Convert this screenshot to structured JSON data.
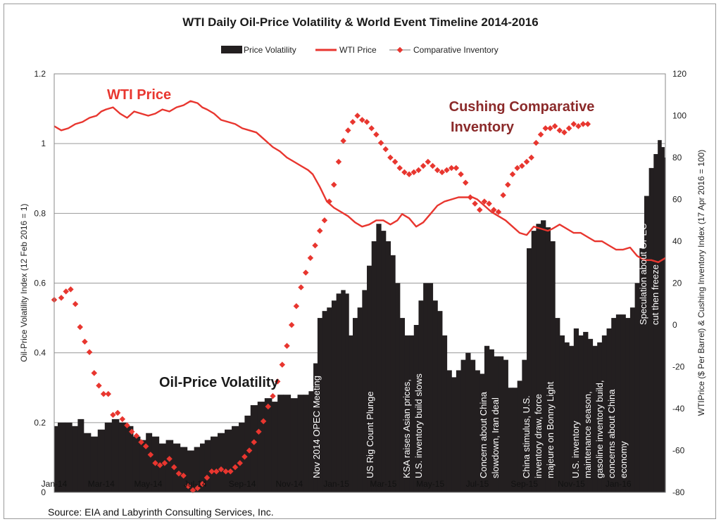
{
  "chart_data": {
    "type": "bar+line+scatter",
    "title": "WTI Daily Oil-Price Volatility & World Event Timeline 2014-2016",
    "legend": {
      "placement": "top",
      "entries": [
        {
          "label": "Price Volatility",
          "color": "#231f20",
          "kind": "bar"
        },
        {
          "label": "WTI Price",
          "color": "#e8362f",
          "kind": "line"
        },
        {
          "label": "Comparative Inventory",
          "color": "#e8362f",
          "kind": "marker-line"
        }
      ]
    },
    "y_left": {
      "label": "Oil-Price Volatility Index (12 Feb 2016 = 1)",
      "range": [
        0,
        1.2
      ],
      "ticks": [
        "0",
        "0.2",
        "0.4",
        "0.6",
        "0.8",
        "1",
        "1.2"
      ]
    },
    "y_right": {
      "label": "WTIPrice ($ Per Barrel) & Cushing Inventory Index (17 Apr 2016 = 100)",
      "range": [
        -80,
        120
      ],
      "ticks": [
        "-80",
        "-60",
        "-40",
        "-20",
        "0",
        "20",
        "40",
        "60",
        "80",
        "100",
        "120"
      ]
    },
    "x_axis": {
      "range": [
        0,
        26
      ],
      "ticks": [
        {
          "x": 0,
          "label": "Jan-14"
        },
        {
          "x": 2,
          "label": "Mar-14"
        },
        {
          "x": 4,
          "label": "May-14"
        },
        {
          "x": 6,
          "label": "Jul-14"
        },
        {
          "x": 8,
          "label": "Sep-14"
        },
        {
          "x": 10,
          "label": "Nov-14"
        },
        {
          "x": 12,
          "label": "Jan-15"
        },
        {
          "x": 14,
          "label": "Mar-15"
        },
        {
          "x": 16,
          "label": "May-15"
        },
        {
          "x": 18,
          "label": "Jul-15"
        },
        {
          "x": 20,
          "label": "Sep-15"
        },
        {
          "x": 22,
          "label": "Nov-15"
        },
        {
          "x": 24,
          "label": "Jan-16"
        }
      ]
    },
    "grid": true,
    "volatility": {
      "name": "Price Volatility",
      "points": [
        [
          0,
          0.19
        ],
        [
          0.3,
          0.2
        ],
        [
          0.6,
          0.2
        ],
        [
          0.9,
          0.19
        ],
        [
          1.1,
          0.21
        ],
        [
          1.4,
          0.17
        ],
        [
          1.7,
          0.16
        ],
        [
          2,
          0.18
        ],
        [
          2.3,
          0.2
        ],
        [
          2.6,
          0.21
        ],
        [
          2.9,
          0.2
        ],
        [
          3.2,
          0.19
        ],
        [
          3.5,
          0.16
        ],
        [
          3.8,
          0.15
        ],
        [
          4,
          0.17
        ],
        [
          4.3,
          0.16
        ],
        [
          4.6,
          0.14
        ],
        [
          4.9,
          0.15
        ],
        [
          5.2,
          0.14
        ],
        [
          5.5,
          0.13
        ],
        [
          5.8,
          0.12
        ],
        [
          6.1,
          0.13
        ],
        [
          6.3,
          0.14
        ],
        [
          6.5,
          0.15
        ],
        [
          6.8,
          0.16
        ],
        [
          7.1,
          0.17
        ],
        [
          7.4,
          0.18
        ],
        [
          7.7,
          0.19
        ],
        [
          8,
          0.2
        ],
        [
          8.2,
          0.22
        ],
        [
          8.5,
          0.25
        ],
        [
          8.8,
          0.26
        ],
        [
          9.1,
          0.27
        ],
        [
          9.4,
          0.26
        ],
        [
          9.6,
          0.28
        ],
        [
          9.9,
          0.28
        ],
        [
          10.2,
          0.27
        ],
        [
          10.5,
          0.28
        ],
        [
          10.7,
          0.28
        ],
        [
          10.95,
          0.29
        ],
        [
          11.1,
          0.37
        ],
        [
          11.3,
          0.5
        ],
        [
          11.5,
          0.52
        ],
        [
          11.7,
          0.53
        ],
        [
          11.9,
          0.55
        ],
        [
          12.1,
          0.57
        ],
        [
          12.3,
          0.58
        ],
        [
          12.45,
          0.57
        ],
        [
          12.6,
          0.45
        ],
        [
          12.8,
          0.5
        ],
        [
          13,
          0.53
        ],
        [
          13.2,
          0.58
        ],
        [
          13.4,
          0.65
        ],
        [
          13.6,
          0.72
        ],
        [
          13.8,
          0.77
        ],
        [
          14,
          0.75
        ],
        [
          14.2,
          0.72
        ],
        [
          14.4,
          0.68
        ],
        [
          14.6,
          0.6
        ],
        [
          14.8,
          0.5
        ],
        [
          15,
          0.45
        ],
        [
          15.2,
          0.45
        ],
        [
          15.4,
          0.48
        ],
        [
          15.6,
          0.55
        ],
        [
          15.8,
          0.6
        ],
        [
          16,
          0.6
        ],
        [
          16.2,
          0.55
        ],
        [
          16.4,
          0.52
        ],
        [
          16.6,
          0.45
        ],
        [
          16.8,
          0.35
        ],
        [
          17,
          0.33
        ],
        [
          17.2,
          0.35
        ],
        [
          17.4,
          0.38
        ],
        [
          17.6,
          0.4
        ],
        [
          17.8,
          0.38
        ],
        [
          18,
          0.35
        ],
        [
          18.2,
          0.34
        ],
        [
          18.4,
          0.42
        ],
        [
          18.6,
          0.41
        ],
        [
          18.8,
          0.39
        ],
        [
          19,
          0.39
        ],
        [
          19.2,
          0.38
        ],
        [
          19.4,
          0.3
        ],
        [
          19.6,
          0.3
        ],
        [
          19.8,
          0.32
        ],
        [
          20,
          0.38
        ],
        [
          20.2,
          0.7
        ],
        [
          20.4,
          0.75
        ],
        [
          20.6,
          0.77
        ],
        [
          20.8,
          0.78
        ],
        [
          21,
          0.76
        ],
        [
          21.2,
          0.72
        ],
        [
          21.4,
          0.5
        ],
        [
          21.6,
          0.45
        ],
        [
          21.8,
          0.43
        ],
        [
          22,
          0.42
        ],
        [
          22.2,
          0.47
        ],
        [
          22.4,
          0.45
        ],
        [
          22.6,
          0.46
        ],
        [
          22.8,
          0.44
        ],
        [
          23,
          0.42
        ],
        [
          23.2,
          0.43
        ],
        [
          23.4,
          0.45
        ],
        [
          23.6,
          0.47
        ],
        [
          23.8,
          0.5
        ],
        [
          24,
          0.51
        ],
        [
          24.2,
          0.51
        ],
        [
          24.4,
          0.5
        ],
        [
          24.6,
          0.53
        ],
        [
          24.8,
          0.6
        ],
        [
          25,
          0.7
        ],
        [
          25.2,
          0.85
        ],
        [
          25.4,
          0.93
        ],
        [
          25.6,
          0.97
        ],
        [
          25.75,
          1.01
        ],
        [
          25.9,
          0.99
        ],
        [
          26,
          0.96
        ]
      ]
    },
    "wti": {
      "name": "WTI Price",
      "points": [
        [
          0,
          95
        ],
        [
          0.3,
          93
        ],
        [
          0.6,
          94
        ],
        [
          0.9,
          96
        ],
        [
          1.2,
          97
        ],
        [
          1.5,
          99
        ],
        [
          1.8,
          100
        ],
        [
          2,
          102
        ],
        [
          2.2,
          103
        ],
        [
          2.5,
          104
        ],
        [
          2.8,
          101
        ],
        [
          3.1,
          99
        ],
        [
          3.4,
          102
        ],
        [
          3.7,
          101
        ],
        [
          4,
          100
        ],
        [
          4.3,
          101
        ],
        [
          4.6,
          103
        ],
        [
          4.9,
          102
        ],
        [
          5.2,
          104
        ],
        [
          5.5,
          105
        ],
        [
          5.8,
          107
        ],
        [
          6.1,
          106
        ],
        [
          6.3,
          104
        ],
        [
          6.5,
          103
        ],
        [
          6.8,
          101
        ],
        [
          7.1,
          98
        ],
        [
          7.4,
          97
        ],
        [
          7.7,
          96
        ],
        [
          8,
          94
        ],
        [
          8.3,
          93
        ],
        [
          8.6,
          92
        ],
        [
          9,
          88
        ],
        [
          9.3,
          85
        ],
        [
          9.6,
          83
        ],
        [
          9.9,
          80
        ],
        [
          10.2,
          78
        ],
        [
          10.5,
          76
        ],
        [
          10.8,
          74
        ],
        [
          11,
          72
        ],
        [
          11.3,
          66
        ],
        [
          11.6,
          59
        ],
        [
          11.9,
          56
        ],
        [
          12.2,
          54
        ],
        [
          12.5,
          52
        ],
        [
          12.8,
          49
        ],
        [
          13.1,
          47
        ],
        [
          13.4,
          48
        ],
        [
          13.7,
          50
        ],
        [
          14,
          50
        ],
        [
          14.3,
          48
        ],
        [
          14.6,
          50
        ],
        [
          14.8,
          53
        ],
        [
          15.1,
          51
        ],
        [
          15.4,
          47
        ],
        [
          15.7,
          49
        ],
        [
          16,
          53
        ],
        [
          16.3,
          57
        ],
        [
          16.6,
          59
        ],
        [
          16.9,
          60
        ],
        [
          17.2,
          61
        ],
        [
          17.5,
          61
        ],
        [
          17.8,
          61
        ],
        [
          18,
          60
        ],
        [
          18.3,
          57
        ],
        [
          18.6,
          54
        ],
        [
          18.9,
          52
        ],
        [
          19.2,
          50
        ],
        [
          19.5,
          47
        ],
        [
          19.8,
          44
        ],
        [
          20.1,
          43
        ],
        [
          20.4,
          47
        ],
        [
          20.7,
          46
        ],
        [
          21,
          45
        ],
        [
          21.2,
          46
        ],
        [
          21.5,
          48
        ],
        [
          21.8,
          46
        ],
        [
          22.1,
          44
        ],
        [
          22.4,
          44
        ],
        [
          22.7,
          42
        ],
        [
          23,
          40
        ],
        [
          23.3,
          40
        ],
        [
          23.6,
          38
        ],
        [
          23.9,
          36
        ],
        [
          24.2,
          36
        ],
        [
          24.5,
          37
        ],
        [
          24.8,
          33
        ],
        [
          25.1,
          31
        ],
        [
          25.4,
          31
        ],
        [
          25.7,
          30
        ],
        [
          26,
          32
        ]
      ]
    },
    "inventory": {
      "name": "Comparative Inventory",
      "points": [
        [
          0,
          12
        ],
        [
          0.3,
          13
        ],
        [
          0.5,
          16
        ],
        [
          0.7,
          17
        ],
        [
          0.9,
          10
        ],
        [
          1.1,
          -1
        ],
        [
          1.3,
          -8
        ],
        [
          1.5,
          -13
        ],
        [
          1.7,
          -23
        ],
        [
          1.9,
          -29
        ],
        [
          2.1,
          -33
        ],
        [
          2.3,
          -33
        ],
        [
          2.5,
          -43
        ],
        [
          2.7,
          -42
        ],
        [
          2.9,
          -45
        ],
        [
          3.1,
          -48
        ],
        [
          3.3,
          -51
        ],
        [
          3.5,
          -53
        ],
        [
          3.7,
          -56
        ],
        [
          3.9,
          -58
        ],
        [
          4.1,
          -62
        ],
        [
          4.3,
          -66
        ],
        [
          4.5,
          -67
        ],
        [
          4.7,
          -66
        ],
        [
          4.9,
          -64
        ],
        [
          5.1,
          -68
        ],
        [
          5.3,
          -71
        ],
        [
          5.5,
          -72
        ],
        [
          5.7,
          -77
        ],
        [
          5.9,
          -79
        ],
        [
          6.1,
          -78
        ],
        [
          6.3,
          -76
        ],
        [
          6.5,
          -73
        ],
        [
          6.7,
          -70
        ],
        [
          6.9,
          -70
        ],
        [
          7.1,
          -69
        ],
        [
          7.3,
          -70
        ],
        [
          7.5,
          -70
        ],
        [
          7.7,
          -68
        ],
        [
          7.9,
          -66
        ],
        [
          8.1,
          -63
        ],
        [
          8.3,
          -60
        ],
        [
          8.5,
          -56
        ],
        [
          8.7,
          -51
        ],
        [
          8.9,
          -46
        ],
        [
          9.1,
          -39
        ],
        [
          9.3,
          -34
        ],
        [
          9.5,
          -27
        ],
        [
          9.7,
          -19
        ],
        [
          9.9,
          -10
        ],
        [
          10.1,
          0
        ],
        [
          10.3,
          9
        ],
        [
          10.5,
          18
        ],
        [
          10.7,
          25
        ],
        [
          10.9,
          32
        ],
        [
          11.1,
          38
        ],
        [
          11.3,
          45
        ],
        [
          11.5,
          50
        ],
        [
          11.7,
          59
        ],
        [
          11.9,
          67
        ],
        [
          12.1,
          78
        ],
        [
          12.3,
          88
        ],
        [
          12.5,
          93
        ],
        [
          12.7,
          97
        ],
        [
          12.9,
          100
        ],
        [
          13.1,
          98
        ],
        [
          13.3,
          97
        ],
        [
          13.5,
          94
        ],
        [
          13.7,
          91
        ],
        [
          13.9,
          87
        ],
        [
          14.1,
          84
        ],
        [
          14.3,
          80
        ],
        [
          14.5,
          78
        ],
        [
          14.7,
          75
        ],
        [
          14.9,
          73
        ],
        [
          15.1,
          72
        ],
        [
          15.3,
          73
        ],
        [
          15.5,
          74
        ],
        [
          15.7,
          76
        ],
        [
          15.9,
          78
        ],
        [
          16.1,
          76
        ],
        [
          16.3,
          74
        ],
        [
          16.5,
          73
        ],
        [
          16.7,
          74
        ],
        [
          16.9,
          75
        ],
        [
          17.1,
          75
        ],
        [
          17.3,
          72
        ],
        [
          17.5,
          68
        ],
        [
          17.7,
          61
        ],
        [
          17.9,
          58
        ],
        [
          18.1,
          55
        ],
        [
          18.3,
          59
        ],
        [
          18.5,
          58
        ],
        [
          18.7,
          55
        ],
        [
          18.9,
          54
        ],
        [
          19.1,
          62
        ],
        [
          19.3,
          67
        ],
        [
          19.5,
          72
        ],
        [
          19.7,
          75
        ],
        [
          19.9,
          76
        ],
        [
          20.1,
          78
        ],
        [
          20.3,
          80
        ],
        [
          20.5,
          87
        ],
        [
          20.7,
          91
        ],
        [
          20.9,
          94
        ],
        [
          21.1,
          94
        ],
        [
          21.3,
          95
        ],
        [
          21.5,
          93
        ],
        [
          21.7,
          92
        ],
        [
          21.9,
          94
        ],
        [
          22.1,
          96
        ],
        [
          22.3,
          95
        ],
        [
          22.5,
          96
        ],
        [
          22.7,
          96
        ]
      ]
    },
    "annotations": [
      {
        "label": "WTI Price",
        "color": "#e8362f"
      },
      {
        "label_lines": [
          "Cushing Comparative",
          "Inventory"
        ],
        "color": "#8b2a2a"
      },
      {
        "label": "Oil-Price Volatility",
        "color": "#1a1a1a"
      },
      {
        "label_lines": [
          "Nov 2014 OPEC Meeting"
        ]
      },
      {
        "label_lines": [
          "US Rig Count Plunge"
        ]
      },
      {
        "label_lines": [
          "KSA raises Asian prices,",
          "U.S. inventory build slows"
        ]
      },
      {
        "label_lines": [
          "Concern about China",
          "slowdown, Iran deal"
        ]
      },
      {
        "label_lines": [
          "China stimulus, U.S.",
          "inventory draw, force",
          "majeure on Bonny Light"
        ]
      },
      {
        "label_lines": [
          "U.S. inventory",
          "maintenance season,",
          "gasoline inventory build,",
          "concerns about China",
          "economy"
        ]
      },
      {
        "label_lines": [
          "Speculation about OPEC",
          "cut then freeze"
        ]
      }
    ],
    "source": "Source: EIA and Labyrinth Consulting Services, Inc."
  }
}
